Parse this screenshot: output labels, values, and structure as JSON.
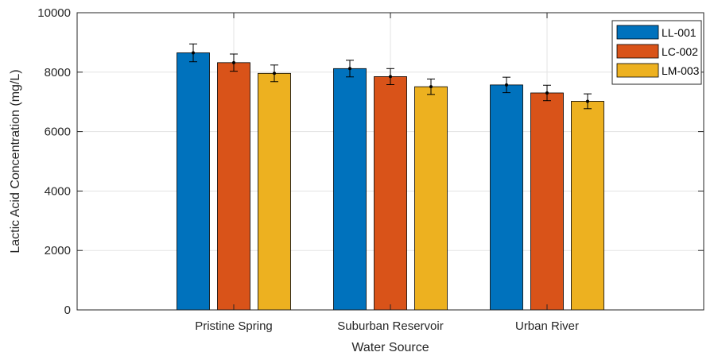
{
  "chart_data": {
    "type": "bar",
    "title": "",
    "xlabel": "Water Source",
    "ylabel": "Lactic Acid Concentration (mg/L)",
    "categories": [
      "Pristine Spring",
      "Suburban Reservoir",
      "Urban River"
    ],
    "ylim": [
      0,
      10000
    ],
    "yticks": [
      0,
      2000,
      4000,
      6000,
      8000,
      10000
    ],
    "grid": true,
    "legend_position": "top-right",
    "series": [
      {
        "name": "LL-001",
        "color": "#0072BD",
        "values": [
          8650,
          8120,
          7570
        ],
        "errors": [
          300,
          280,
          260
        ]
      },
      {
        "name": "LC-002",
        "color": "#D95319",
        "values": [
          8320,
          7850,
          7300
        ],
        "errors": [
          290,
          270,
          260
        ]
      },
      {
        "name": "LM-003",
        "color": "#EDB120",
        "values": [
          7960,
          7510,
          7020
        ],
        "errors": [
          280,
          260,
          250
        ]
      }
    ]
  }
}
